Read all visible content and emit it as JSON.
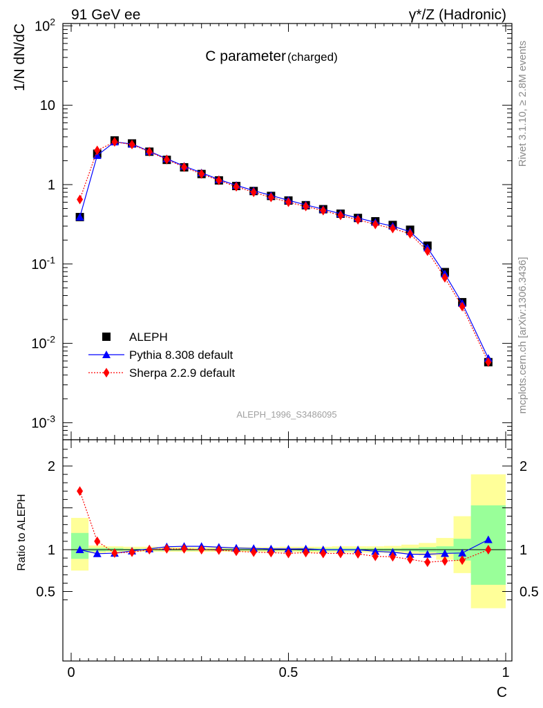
{
  "header": {
    "left": "91 GeV ee",
    "right": "γ*/Z (Hadronic)"
  },
  "side": {
    "rivet": "Rivet 3.1.10, ≥ 2.8M events",
    "mcplots": "mcplots.cern.ch [arXiv:1306.3436]"
  },
  "chart_data": {
    "type": "line",
    "title": "C parameter",
    "title_suffix": "(charged)",
    "analysis": "ALEPH_1996_S3486095",
    "xlabel": "C",
    "ylabel_main": "1/N dN/dC",
    "ylabel_ratio": "Ratio to ALEPH",
    "xlim": [
      0,
      1
    ],
    "ylim_main": [
      0.0006,
      100
    ],
    "yscale_main": "log",
    "ylim_ratio": [
      0.35,
      2.3
    ],
    "x_ticks": [
      "0",
      "0.5",
      "1"
    ],
    "y_ticks_main": [
      "10^-3",
      "10^-2",
      "10^-1",
      "1",
      "10",
      "10^2"
    ],
    "y_ticks_ratio": [
      "0.5",
      "1",
      "2"
    ],
    "legend_position": "bottom-left",
    "bins": [
      [
        0.0,
        0.04
      ],
      [
        0.04,
        0.08
      ],
      [
        0.08,
        0.12
      ],
      [
        0.12,
        0.16
      ],
      [
        0.16,
        0.2
      ],
      [
        0.2,
        0.24
      ],
      [
        0.24,
        0.28
      ],
      [
        0.28,
        0.32
      ],
      [
        0.32,
        0.36
      ],
      [
        0.36,
        0.4
      ],
      [
        0.4,
        0.44
      ],
      [
        0.44,
        0.48
      ],
      [
        0.48,
        0.52
      ],
      [
        0.52,
        0.56
      ],
      [
        0.56,
        0.6
      ],
      [
        0.6,
        0.64
      ],
      [
        0.64,
        0.68
      ],
      [
        0.68,
        0.72
      ],
      [
        0.72,
        0.76
      ],
      [
        0.76,
        0.8
      ],
      [
        0.8,
        0.84
      ],
      [
        0.84,
        0.88
      ],
      [
        0.88,
        0.92
      ],
      [
        0.92,
        1.0
      ]
    ],
    "x": [
      0.02,
      0.06,
      0.1,
      0.14,
      0.18,
      0.22,
      0.26,
      0.3,
      0.34,
      0.38,
      0.42,
      0.46,
      0.5,
      0.54,
      0.58,
      0.62,
      0.66,
      0.7,
      0.74,
      0.78,
      0.82,
      0.86,
      0.9,
      0.96
    ],
    "series": [
      {
        "name": "ALEPH",
        "color": "#000000",
        "marker": "square",
        "line": "none",
        "values": [
          0.39,
          2.45,
          3.6,
          3.3,
          2.6,
          2.05,
          1.65,
          1.36,
          1.13,
          0.96,
          0.83,
          0.72,
          0.63,
          0.55,
          0.49,
          0.43,
          0.38,
          0.345,
          0.31,
          0.27,
          0.17,
          0.079,
          0.033,
          0.0058
        ]
      },
      {
        "name": "Pythia 8.308 default",
        "color": "#0000ff",
        "marker": "triangle",
        "line": "solid",
        "values": [
          0.39,
          2.33,
          3.45,
          3.25,
          2.63,
          2.12,
          1.71,
          1.41,
          1.16,
          0.98,
          0.84,
          0.73,
          0.635,
          0.555,
          0.49,
          0.43,
          0.38,
          0.335,
          0.3,
          0.255,
          0.16,
          0.075,
          0.032,
          0.0065
        ],
        "ratio": [
          1.0,
          0.952,
          0.958,
          0.985,
          1.01,
          1.035,
          1.04,
          1.04,
          1.03,
          1.02,
          1.015,
          1.01,
          1.008,
          1.01,
          1.0,
          1.0,
          1.0,
          0.98,
          0.97,
          0.945,
          0.945,
          0.955,
          0.96,
          1.12
        ]
      },
      {
        "name": "Sherpa 2.2.9 default",
        "color": "#ff0000",
        "marker": "diamond",
        "line": "dotted",
        "values": [
          0.65,
          2.7,
          3.45,
          3.2,
          2.6,
          2.07,
          1.66,
          1.36,
          1.13,
          0.94,
          0.8,
          0.69,
          0.6,
          0.53,
          0.47,
          0.41,
          0.36,
          0.315,
          0.28,
          0.24,
          0.145,
          0.067,
          0.029,
          0.0058
        ],
        "ratio": [
          1.7,
          1.1,
          0.96,
          0.97,
          1.0,
          1.01,
          1.01,
          1.0,
          0.995,
          0.98,
          0.97,
          0.965,
          0.955,
          0.965,
          0.955,
          0.955,
          0.95,
          0.92,
          0.915,
          0.885,
          0.85,
          0.865,
          0.875,
          1.0
        ]
      }
    ],
    "uncertainty_bands": {
      "inner_green": [
        [
          0.89,
          1.2
        ],
        [
          0.98,
          1.02
        ],
        [
          0.985,
          1.02
        ],
        [
          0.99,
          1.01
        ],
        [
          0.99,
          1.01
        ],
        [
          0.99,
          1.01
        ],
        [
          0.99,
          1.01
        ],
        [
          0.99,
          1.01
        ],
        [
          0.99,
          1.01
        ],
        [
          0.99,
          1.01
        ],
        [
          0.99,
          1.01
        ],
        [
          0.99,
          1.01
        ],
        [
          0.99,
          1.01
        ],
        [
          0.985,
          1.015
        ],
        [
          0.985,
          1.015
        ],
        [
          0.985,
          1.015
        ],
        [
          0.985,
          1.015
        ],
        [
          0.985,
          1.015
        ],
        [
          0.985,
          1.015
        ],
        [
          0.98,
          1.02
        ],
        [
          0.97,
          1.03
        ],
        [
          0.96,
          1.04
        ],
        [
          0.87,
          1.13
        ],
        [
          0.58,
          1.53
        ]
      ],
      "outer_yellow": [
        [
          0.75,
          1.38
        ],
        [
          0.96,
          1.05
        ],
        [
          0.97,
          1.04
        ],
        [
          0.975,
          1.035
        ],
        [
          0.975,
          1.035
        ],
        [
          0.975,
          1.03
        ],
        [
          0.975,
          1.03
        ],
        [
          0.975,
          1.03
        ],
        [
          0.975,
          1.03
        ],
        [
          0.975,
          1.03
        ],
        [
          0.975,
          1.03
        ],
        [
          0.97,
          1.03
        ],
        [
          0.97,
          1.035
        ],
        [
          0.965,
          1.035
        ],
        [
          0.965,
          1.035
        ],
        [
          0.965,
          1.04
        ],
        [
          0.965,
          1.04
        ],
        [
          0.965,
          1.04
        ],
        [
          0.96,
          1.045
        ],
        [
          0.95,
          1.06
        ],
        [
          0.93,
          1.08
        ],
        [
          0.88,
          1.14
        ],
        [
          0.72,
          1.4
        ],
        [
          0.3,
          1.9
        ]
      ]
    }
  }
}
